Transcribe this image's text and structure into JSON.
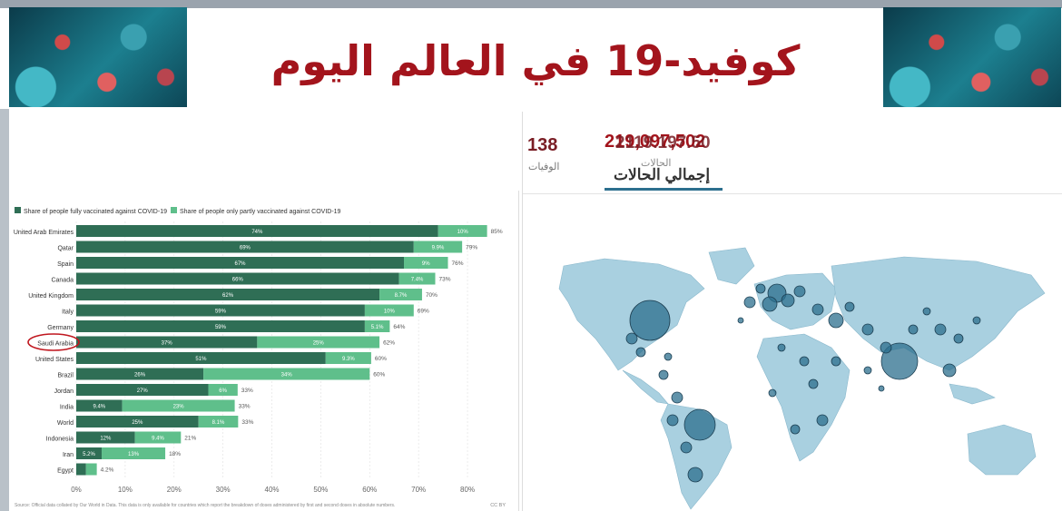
{
  "title": "كوفيد-19  في العالم اليوم",
  "images": {
    "left": "virus-image",
    "right": "virus-image"
  },
  "stats": {
    "deaths_value": "138",
    "deaths_label": "الوفيات",
    "cases_value": "219,097,502",
    "cases_value_overlap": "2119.197.50",
    "cases_sublabel": "الحالات",
    "cases_label": "إجمالي الحالات"
  },
  "colors": {
    "title": "#a3141c",
    "full": "#2f6e55",
    "partial": "#5fbf8b",
    "map_land": "#a9d0e0",
    "bubble": "#2c6f8e",
    "highlight_circle": "#c0171f"
  },
  "chart_data": {
    "type": "bar",
    "stacked": true,
    "orientation": "horizontal",
    "legend": [
      "Share of people fully vaccinated against COVID-19",
      "Share of people only partly vaccinated against COVID-19"
    ],
    "legend_position": "top-left",
    "categories": [
      "United Arab Emirates",
      "Qatar",
      "Spain",
      "Canada",
      "United Kingdom",
      "Italy",
      "Germany",
      "Saudi Arabia",
      "United States",
      "Brazil",
      "Jordan",
      "India",
      "World",
      "Indonesia",
      "Iran",
      "Egypt"
    ],
    "series": [
      {
        "name": "Share of people fully vaccinated against COVID-19",
        "values": [
          74,
          69,
          67,
          66,
          62,
          59,
          59,
          37,
          51,
          26,
          27,
          9.4,
          25,
          12,
          5.2,
          2
        ],
        "labels": [
          "74%",
          "69%",
          "67%",
          "66%",
          "62%",
          "59%",
          "59%",
          "37%",
          "51%",
          "26%",
          "27%",
          "9.4%",
          "25%",
          "12%",
          "5.2%",
          ""
        ]
      },
      {
        "name": "Share of people only partly vaccinated against COVID-19",
        "values": [
          10,
          9.9,
          9,
          7.4,
          8.7,
          10,
          5.1,
          25,
          9.3,
          34,
          6,
          23,
          8.1,
          9.4,
          13,
          2.2
        ],
        "labels": [
          "10%",
          "9.9%",
          "9%",
          "7.4%",
          "8.7%",
          "10%",
          "5.1%",
          "25%",
          "9.3%",
          "34%",
          "6%",
          "23%",
          "8.1%",
          "9.4%",
          "13%",
          ""
        ]
      }
    ],
    "totals": [
      "85%",
      "79%",
      "76%",
      "73%",
      "70%",
      "69%",
      "64%",
      "62%",
      "60%",
      "60%",
      "33%",
      "33%",
      "33%",
      "21%",
      "18%",
      "4.2%"
    ],
    "highlighted_category": "Saudi Arabia",
    "xticks": [
      "0%",
      "10%",
      "20%",
      "30%",
      "40%",
      "50%",
      "60%",
      "70%",
      "80%"
    ],
    "xlim": [
      0,
      85
    ],
    "grid": true,
    "source": "Source: Official data collated by Our World in Data. This data is only available for countries which report the breakdown of doses administered by first and second doses in absolute numbers.",
    "license": "CC BY"
  }
}
